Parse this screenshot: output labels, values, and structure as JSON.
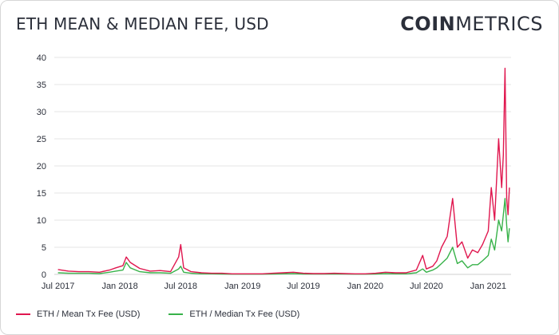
{
  "header": {
    "title": "ETH MEAN & MEDIAN FEE, USD",
    "logo_bold": "COIN",
    "logo_light": "METRICS"
  },
  "colors": {
    "mean": "#e0174f",
    "median": "#38b24a",
    "grid": "#e6e6e6"
  },
  "chart_data": {
    "type": "line",
    "title": "ETH MEAN & MEDIAN FEE, USD",
    "xlabel": "",
    "ylabel": "",
    "ylim": [
      0,
      40
    ],
    "yticks": [
      0,
      5,
      10,
      15,
      20,
      25,
      30,
      35,
      40
    ],
    "xticks": [
      "Jul 2017",
      "Jan 2018",
      "Jul 2018",
      "Jan 2019",
      "Jul 2019",
      "Jan 2020",
      "Jul 2020",
      "Jan 2021"
    ],
    "grid": "horizontal",
    "legend": "bottom-left",
    "x": [
      "2017-07-01",
      "2017-08-01",
      "2017-09-01",
      "2017-10-01",
      "2017-11-01",
      "2017-12-01",
      "2017-12-20",
      "2018-01-10",
      "2018-01-20",
      "2018-02-01",
      "2018-03-01",
      "2018-04-01",
      "2018-05-01",
      "2018-06-01",
      "2018-06-25",
      "2018-07-01",
      "2018-07-10",
      "2018-08-01",
      "2018-09-01",
      "2018-10-01",
      "2018-11-01",
      "2018-12-01",
      "2019-01-01",
      "2019-02-01",
      "2019-03-01",
      "2019-04-01",
      "2019-05-01",
      "2019-06-01",
      "2019-07-01",
      "2019-08-01",
      "2019-09-01",
      "2019-10-01",
      "2019-11-01",
      "2019-12-01",
      "2020-01-01",
      "2020-02-01",
      "2020-03-01",
      "2020-04-01",
      "2020-05-01",
      "2020-06-01",
      "2020-06-20",
      "2020-07-01",
      "2020-07-20",
      "2020-08-01",
      "2020-08-15",
      "2020-09-01",
      "2020-09-17",
      "2020-10-01",
      "2020-10-15",
      "2020-11-01",
      "2020-11-15",
      "2020-12-01",
      "2020-12-15",
      "2021-01-01",
      "2021-01-10",
      "2021-01-20",
      "2021-02-01",
      "2021-02-10",
      "2021-02-15",
      "2021-02-20",
      "2021-02-25",
      "2021-03-01",
      "2021-03-05"
    ],
    "series": [
      {
        "name": "ETH / Mean Tx Fee (USD)",
        "values": [
          0.9,
          0.6,
          0.5,
          0.5,
          0.4,
          0.8,
          1.2,
          1.6,
          3.2,
          2.2,
          1.1,
          0.6,
          0.7,
          0.5,
          3.2,
          5.5,
          1.2,
          0.5,
          0.3,
          0.2,
          0.2,
          0.1,
          0.1,
          0.1,
          0.1,
          0.2,
          0.3,
          0.4,
          0.2,
          0.15,
          0.15,
          0.2,
          0.15,
          0.1,
          0.1,
          0.2,
          0.4,
          0.3,
          0.3,
          0.8,
          3.5,
          1.0,
          1.5,
          2.5,
          5.0,
          7.0,
          14.0,
          5.0,
          6.0,
          3.0,
          4.5,
          4.0,
          5.5,
          8.0,
          16.0,
          10.0,
          25.0,
          16.0,
          22.0,
          38.0,
          14.0,
          11.0,
          16.0
        ]
      },
      {
        "name": "ETH / Median Tx Fee (USD)",
        "values": [
          0.3,
          0.2,
          0.2,
          0.2,
          0.15,
          0.4,
          0.6,
          0.8,
          2.2,
          1.2,
          0.5,
          0.3,
          0.3,
          0.2,
          1.0,
          1.5,
          0.4,
          0.2,
          0.1,
          0.1,
          0.08,
          0.05,
          0.05,
          0.05,
          0.05,
          0.08,
          0.1,
          0.15,
          0.08,
          0.06,
          0.06,
          0.08,
          0.06,
          0.05,
          0.05,
          0.08,
          0.15,
          0.1,
          0.1,
          0.3,
          1.0,
          0.4,
          0.8,
          1.2,
          2.0,
          3.0,
          5.0,
          2.0,
          2.5,
          1.2,
          1.8,
          1.8,
          2.5,
          3.5,
          6.5,
          4.5,
          10.0,
          8.0,
          11.0,
          14.0,
          9.0,
          6.0,
          8.5
        ]
      }
    ]
  }
}
